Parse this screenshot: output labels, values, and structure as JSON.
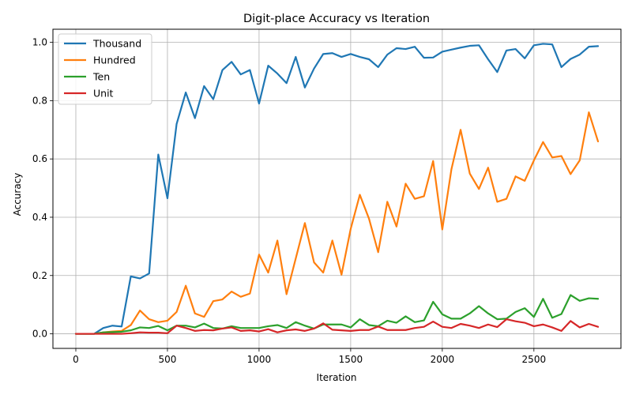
{
  "chart_data": {
    "type": "line",
    "title": "Digit-place Accuracy vs Iteration",
    "xlabel": "Iteration",
    "ylabel": "Accuracy",
    "xlim": [
      -125,
      2975
    ],
    "ylim": [
      -0.05,
      1.045
    ],
    "xticks": [
      0,
      500,
      1000,
      1500,
      2000,
      2500
    ],
    "yticks": [
      0.0,
      0.2,
      0.4,
      0.6,
      0.8,
      1.0
    ],
    "grid": true,
    "legend_position": "top-left",
    "x": [
      0,
      50,
      100,
      150,
      200,
      250,
      300,
      350,
      400,
      450,
      500,
      550,
      600,
      650,
      700,
      750,
      800,
      850,
      900,
      950,
      1000,
      1050,
      1100,
      1150,
      1200,
      1250,
      1300,
      1350,
      1400,
      1450,
      1500,
      1550,
      1600,
      1650,
      1700,
      1750,
      1800,
      1850,
      1900,
      1950,
      2000,
      2050,
      2100,
      2150,
      2200,
      2250,
      2300,
      2350,
      2400,
      2450,
      2500,
      2550,
      2600,
      2650,
      2700,
      2750,
      2800,
      2850
    ],
    "series": [
      {
        "name": "Thousand",
        "color": "#1f77b4",
        "values": [
          0.0,
          0.0,
          0.0,
          0.02,
          0.028,
          0.025,
          0.197,
          0.19,
          0.207,
          0.615,
          0.465,
          0.72,
          0.828,
          0.74,
          0.85,
          0.805,
          0.905,
          0.933,
          0.89,
          0.905,
          0.79,
          0.92,
          0.893,
          0.86,
          0.95,
          0.845,
          0.91,
          0.96,
          0.963,
          0.95,
          0.96,
          0.95,
          0.942,
          0.915,
          0.958,
          0.98,
          0.977,
          0.985,
          0.947,
          0.948,
          0.968,
          0.975,
          0.982,
          0.988,
          0.99,
          0.942,
          0.898,
          0.972,
          0.977,
          0.945,
          0.99,
          0.995,
          0.993,
          0.915,
          0.943,
          0.958,
          0.985,
          0.987
        ]
      },
      {
        "name": "Hundred",
        "color": "#ff7f0e",
        "values": [
          0.0,
          0.0,
          0.0,
          0.005,
          0.008,
          0.01,
          0.03,
          0.08,
          0.05,
          0.04,
          0.045,
          0.075,
          0.165,
          0.07,
          0.058,
          0.112,
          0.118,
          0.145,
          0.127,
          0.138,
          0.272,
          0.21,
          0.32,
          0.136,
          0.258,
          0.38,
          0.245,
          0.21,
          0.32,
          0.203,
          0.36,
          0.477,
          0.395,
          0.28,
          0.453,
          0.368,
          0.515,
          0.463,
          0.472,
          0.593,
          0.358,
          0.565,
          0.7,
          0.55,
          0.497,
          0.57,
          0.453,
          0.463,
          0.54,
          0.525,
          0.595,
          0.658,
          0.605,
          0.61,
          0.548,
          0.595,
          0.76,
          0.66
        ]
      },
      {
        "name": "Ten",
        "color": "#2ca02c",
        "values": [
          0.0,
          0.0,
          0.0,
          0.005,
          0.006,
          0.007,
          0.012,
          0.022,
          0.02,
          0.027,
          0.012,
          0.028,
          0.028,
          0.022,
          0.035,
          0.02,
          0.018,
          0.026,
          0.02,
          0.02,
          0.02,
          0.026,
          0.03,
          0.02,
          0.04,
          0.028,
          0.018,
          0.032,
          0.032,
          0.032,
          0.022,
          0.05,
          0.03,
          0.026,
          0.045,
          0.038,
          0.06,
          0.04,
          0.046,
          0.11,
          0.067,
          0.052,
          0.052,
          0.07,
          0.095,
          0.07,
          0.05,
          0.052,
          0.075,
          0.088,
          0.058,
          0.12,
          0.055,
          0.068,
          0.133,
          0.113,
          0.122,
          0.12
        ]
      },
      {
        "name": "Unit",
        "color": "#d62728",
        "values": [
          0.0,
          0.0,
          0.0,
          0.0,
          0.0,
          0.0,
          0.002,
          0.005,
          0.004,
          0.004,
          0.002,
          0.028,
          0.02,
          0.01,
          0.013,
          0.012,
          0.018,
          0.022,
          0.01,
          0.012,
          0.008,
          0.016,
          0.005,
          0.012,
          0.015,
          0.01,
          0.018,
          0.036,
          0.014,
          0.012,
          0.01,
          0.013,
          0.013,
          0.025,
          0.013,
          0.013,
          0.013,
          0.02,
          0.024,
          0.042,
          0.024,
          0.02,
          0.034,
          0.028,
          0.02,
          0.032,
          0.023,
          0.05,
          0.043,
          0.038,
          0.026,
          0.032,
          0.022,
          0.01,
          0.044,
          0.022,
          0.034,
          0.024
        ]
      }
    ]
  }
}
